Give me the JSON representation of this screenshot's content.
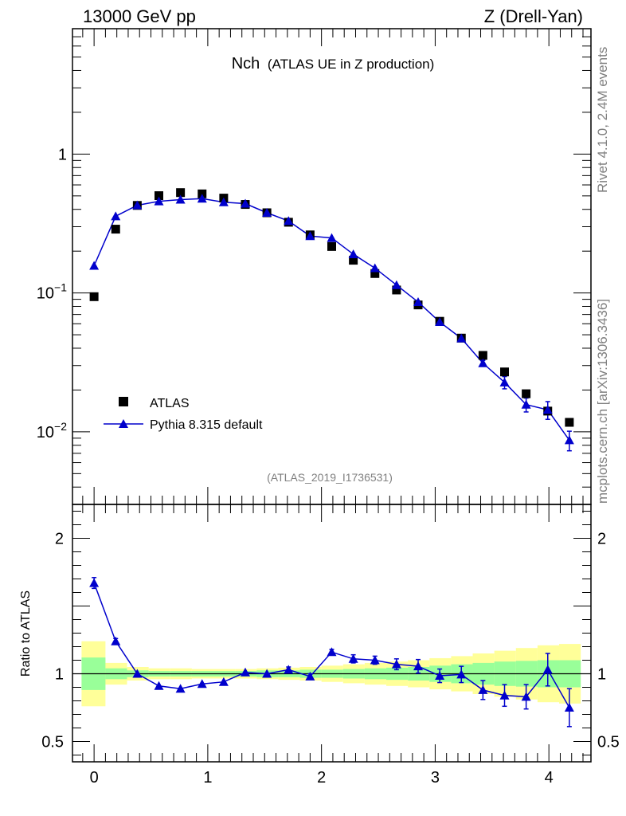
{
  "header": {
    "left": "13000 GeV pp",
    "right": "Z (Drell-Yan)"
  },
  "side_labels": {
    "rivet": "Rivet 4.1.0,  2.4M events",
    "mcplots": "mcplots.cern.ch [arXiv:1306.3436]"
  },
  "colors": {
    "mc": "#0000cc",
    "data": "#000000",
    "band_inner": "#99ff99",
    "band_outer": "#ffff99"
  },
  "chart_data": [
    {
      "type": "scatter",
      "title": "Nch",
      "subtitle": "(ATLAS UE in Z production)",
      "watermark": "(ATLAS_2019_I1736531)",
      "xlabel": "",
      "ylabel": "",
      "yscale": "log",
      "xlim": [
        -0.19,
        4.37
      ],
      "ylim": [
        0.003,
        8.0
      ],
      "y_ticks": [
        {
          "v": 1,
          "base": "1",
          "exp": ""
        },
        {
          "v": 0.1,
          "base": "10",
          "exp": "−1"
        },
        {
          "v": 0.01,
          "base": "10",
          "exp": "−2"
        }
      ],
      "legend": [
        "ATLAS",
        "Pythia 8.315 default"
      ],
      "series": [
        {
          "name": "ATLAS",
          "x": [
            0.0,
            0.19,
            0.38,
            0.57,
            0.76,
            0.95,
            1.14,
            1.33,
            1.52,
            1.71,
            1.9,
            2.09,
            2.28,
            2.47,
            2.66,
            2.85,
            3.04,
            3.23,
            3.42,
            3.61,
            3.8,
            3.99,
            4.18
          ],
          "y": [
            0.094,
            0.288,
            0.427,
            0.502,
            0.528,
            0.517,
            0.482,
            0.434,
            0.378,
            0.323,
            0.262,
            0.216,
            0.172,
            0.138,
            0.105,
            0.082,
            0.0625,
            0.0473,
            0.0355,
            0.027,
            0.0188,
            0.0141,
            0.0117
          ]
        },
        {
          "name": "Pythia 8.315 default",
          "x": [
            0.0,
            0.19,
            0.38,
            0.57,
            0.76,
            0.95,
            1.14,
            1.33,
            1.52,
            1.71,
            1.9,
            2.09,
            2.28,
            2.47,
            2.66,
            2.85,
            3.04,
            3.23,
            3.42,
            3.61,
            3.8,
            3.99,
            4.18
          ],
          "y": [
            0.157,
            0.357,
            0.428,
            0.457,
            0.47,
            0.478,
            0.45,
            0.44,
            0.378,
            0.33,
            0.257,
            0.249,
            0.19,
            0.151,
            0.114,
            0.086,
            0.0618,
            0.0471,
            0.0312,
            0.0227,
            0.0157,
            0.0144,
            0.0087
          ],
          "err": [
            0,
            0,
            0,
            0,
            0,
            0,
            0,
            0,
            0,
            0,
            0,
            0,
            0,
            0,
            0,
            0,
            0.0015,
            0.0012,
            0.0015,
            0.0023,
            0.0018,
            0.0021,
            0.0014
          ]
        }
      ]
    },
    {
      "type": "scatter",
      "title": "",
      "xlabel": "",
      "ylabel": "Ratio to ATLAS",
      "xlim": [
        -0.19,
        4.37
      ],
      "ylim": [
        0.35,
        2.25
      ],
      "x_ticks": [
        0,
        1,
        2,
        3,
        4
      ],
      "y_ticks": [
        0.5,
        1,
        2
      ],
      "bands": {
        "x_edges": [
          -0.11,
          0.1,
          0.29,
          0.48,
          0.67,
          0.86,
          1.05,
          1.24,
          1.43,
          1.62,
          1.81,
          2.0,
          2.19,
          2.38,
          2.57,
          2.76,
          2.95,
          3.14,
          3.33,
          3.52,
          3.71,
          3.9,
          4.09,
          4.28
        ],
        "inner_lo": [
          0.88,
          0.96,
          0.975,
          0.98,
          0.98,
          0.98,
          0.98,
          0.98,
          0.975,
          0.975,
          0.97,
          0.97,
          0.965,
          0.96,
          0.955,
          0.95,
          0.94,
          0.93,
          0.92,
          0.91,
          0.905,
          0.9,
          0.9
        ],
        "inner_hi": [
          1.12,
          1.04,
          1.025,
          1.02,
          1.02,
          1.02,
          1.02,
          1.02,
          1.025,
          1.025,
          1.03,
          1.03,
          1.035,
          1.04,
          1.045,
          1.05,
          1.06,
          1.07,
          1.08,
          1.09,
          1.095,
          1.1,
          1.1
        ],
        "outer_lo": [
          0.76,
          0.92,
          0.95,
          0.96,
          0.96,
          0.965,
          0.965,
          0.965,
          0.96,
          0.955,
          0.95,
          0.94,
          0.93,
          0.92,
          0.91,
          0.9,
          0.885,
          0.87,
          0.85,
          0.83,
          0.81,
          0.79,
          0.78
        ],
        "outer_hi": [
          1.24,
          1.08,
          1.05,
          1.04,
          1.04,
          1.035,
          1.035,
          1.035,
          1.04,
          1.045,
          1.05,
          1.06,
          1.07,
          1.08,
          1.09,
          1.1,
          1.115,
          1.13,
          1.15,
          1.17,
          1.19,
          1.21,
          1.22
        ]
      },
      "series": [
        {
          "name": "Pythia 8.315 default / ATLAS",
          "x": [
            0.0,
            0.19,
            0.38,
            0.57,
            0.76,
            0.95,
            1.14,
            1.33,
            1.52,
            1.71,
            1.9,
            2.09,
            2.28,
            2.47,
            2.66,
            2.85,
            3.04,
            3.23,
            3.42,
            3.61,
            3.8,
            3.99,
            4.18
          ],
          "y": [
            1.67,
            1.24,
            1.0,
            0.91,
            0.89,
            0.925,
            0.94,
            1.01,
            1.0,
            1.03,
            0.98,
            1.16,
            1.11,
            1.1,
            1.07,
            1.055,
            0.985,
            0.995,
            0.88,
            0.84,
            0.83,
            1.03,
            0.75
          ],
          "err": [
            0.04,
            0.02,
            0.01,
            0.01,
            0.01,
            0.01,
            0.01,
            0.01,
            0.01,
            0.02,
            0.02,
            0.02,
            0.03,
            0.03,
            0.04,
            0.05,
            0.05,
            0.06,
            0.07,
            0.08,
            0.09,
            0.12,
            0.14
          ]
        }
      ]
    }
  ]
}
